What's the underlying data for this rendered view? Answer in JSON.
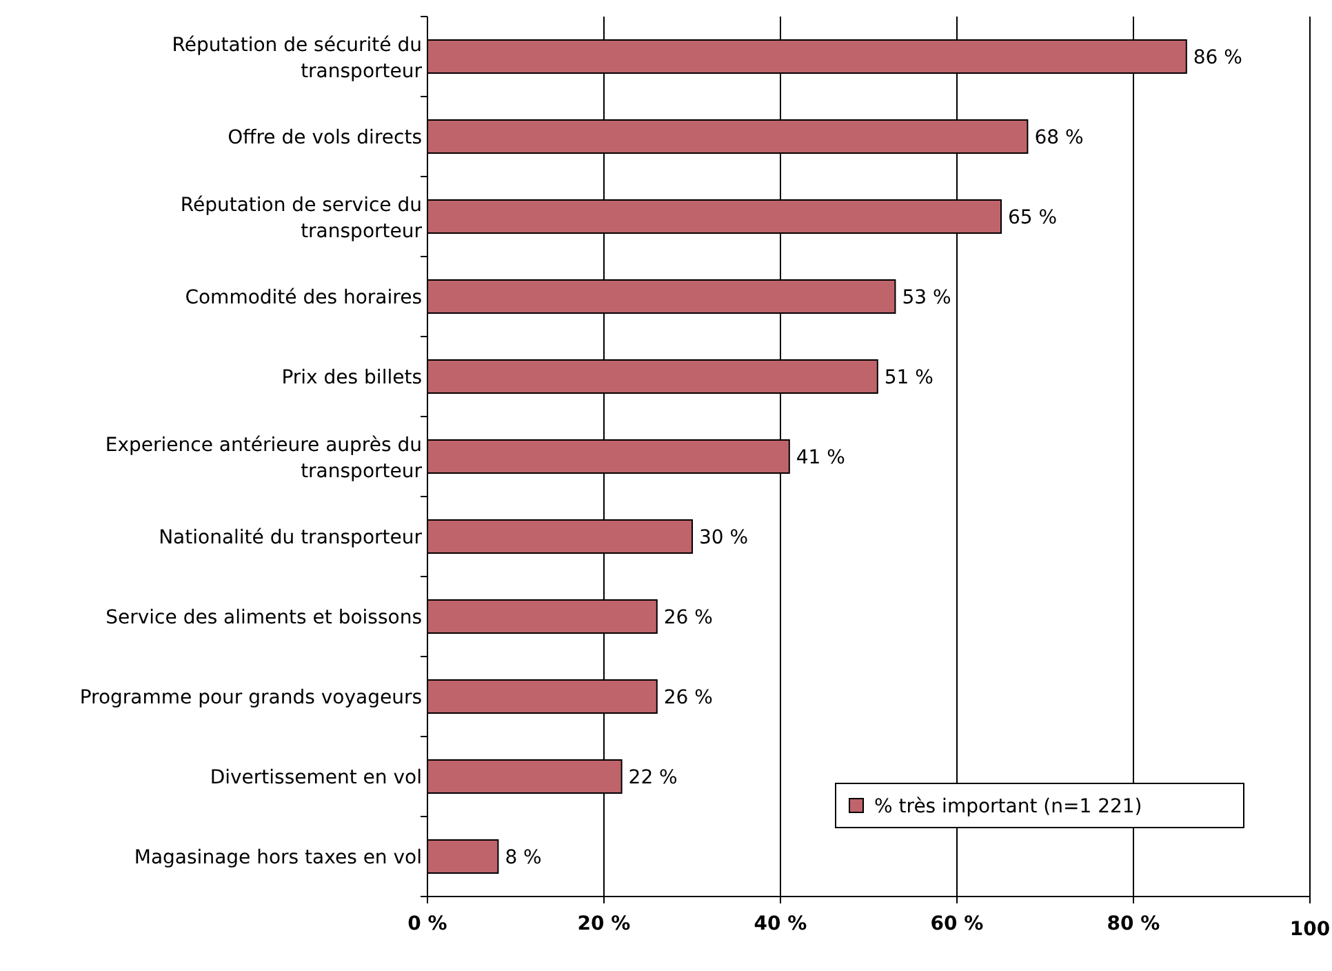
{
  "chart_data": {
    "type": "bar",
    "orientation": "horizontal",
    "categories": [
      "Réputation de sécurité du transporteur",
      "Offre de vols directs",
      "Réputation de service du transporteur",
      "Commodité des horaires",
      "Prix des billets",
      "Experience antérieure auprès du transporteur",
      "Nationalité du transporteur",
      "Service des aliments et boissons",
      "Programme pour grands voyageurs",
      "Divertissement en vol",
      "Magasinage hors taxes en vol"
    ],
    "series": [
      {
        "name": "% très important (n=1 221)",
        "color": "#c0646c",
        "values": [
          86,
          68,
          65,
          53,
          51,
          41,
          30,
          26,
          26,
          22,
          8
        ],
        "value_labels": [
          "86 %",
          "68 %",
          "65 %",
          "53 %",
          "51 %",
          "41 %",
          "30 %",
          "26 %",
          "26 %",
          "22 %",
          "8 %"
        ]
      }
    ],
    "xlim": [
      0,
      100
    ],
    "xticks": [
      {
        "value": 0,
        "label": "0 %"
      },
      {
        "value": 20,
        "label": "20 %"
      },
      {
        "value": 40,
        "label": "40 %"
      },
      {
        "value": 60,
        "label": "60 %"
      },
      {
        "value": 80,
        "label": "80 %"
      },
      100
    ],
    "grid": "x",
    "legend": "bottom right"
  }
}
